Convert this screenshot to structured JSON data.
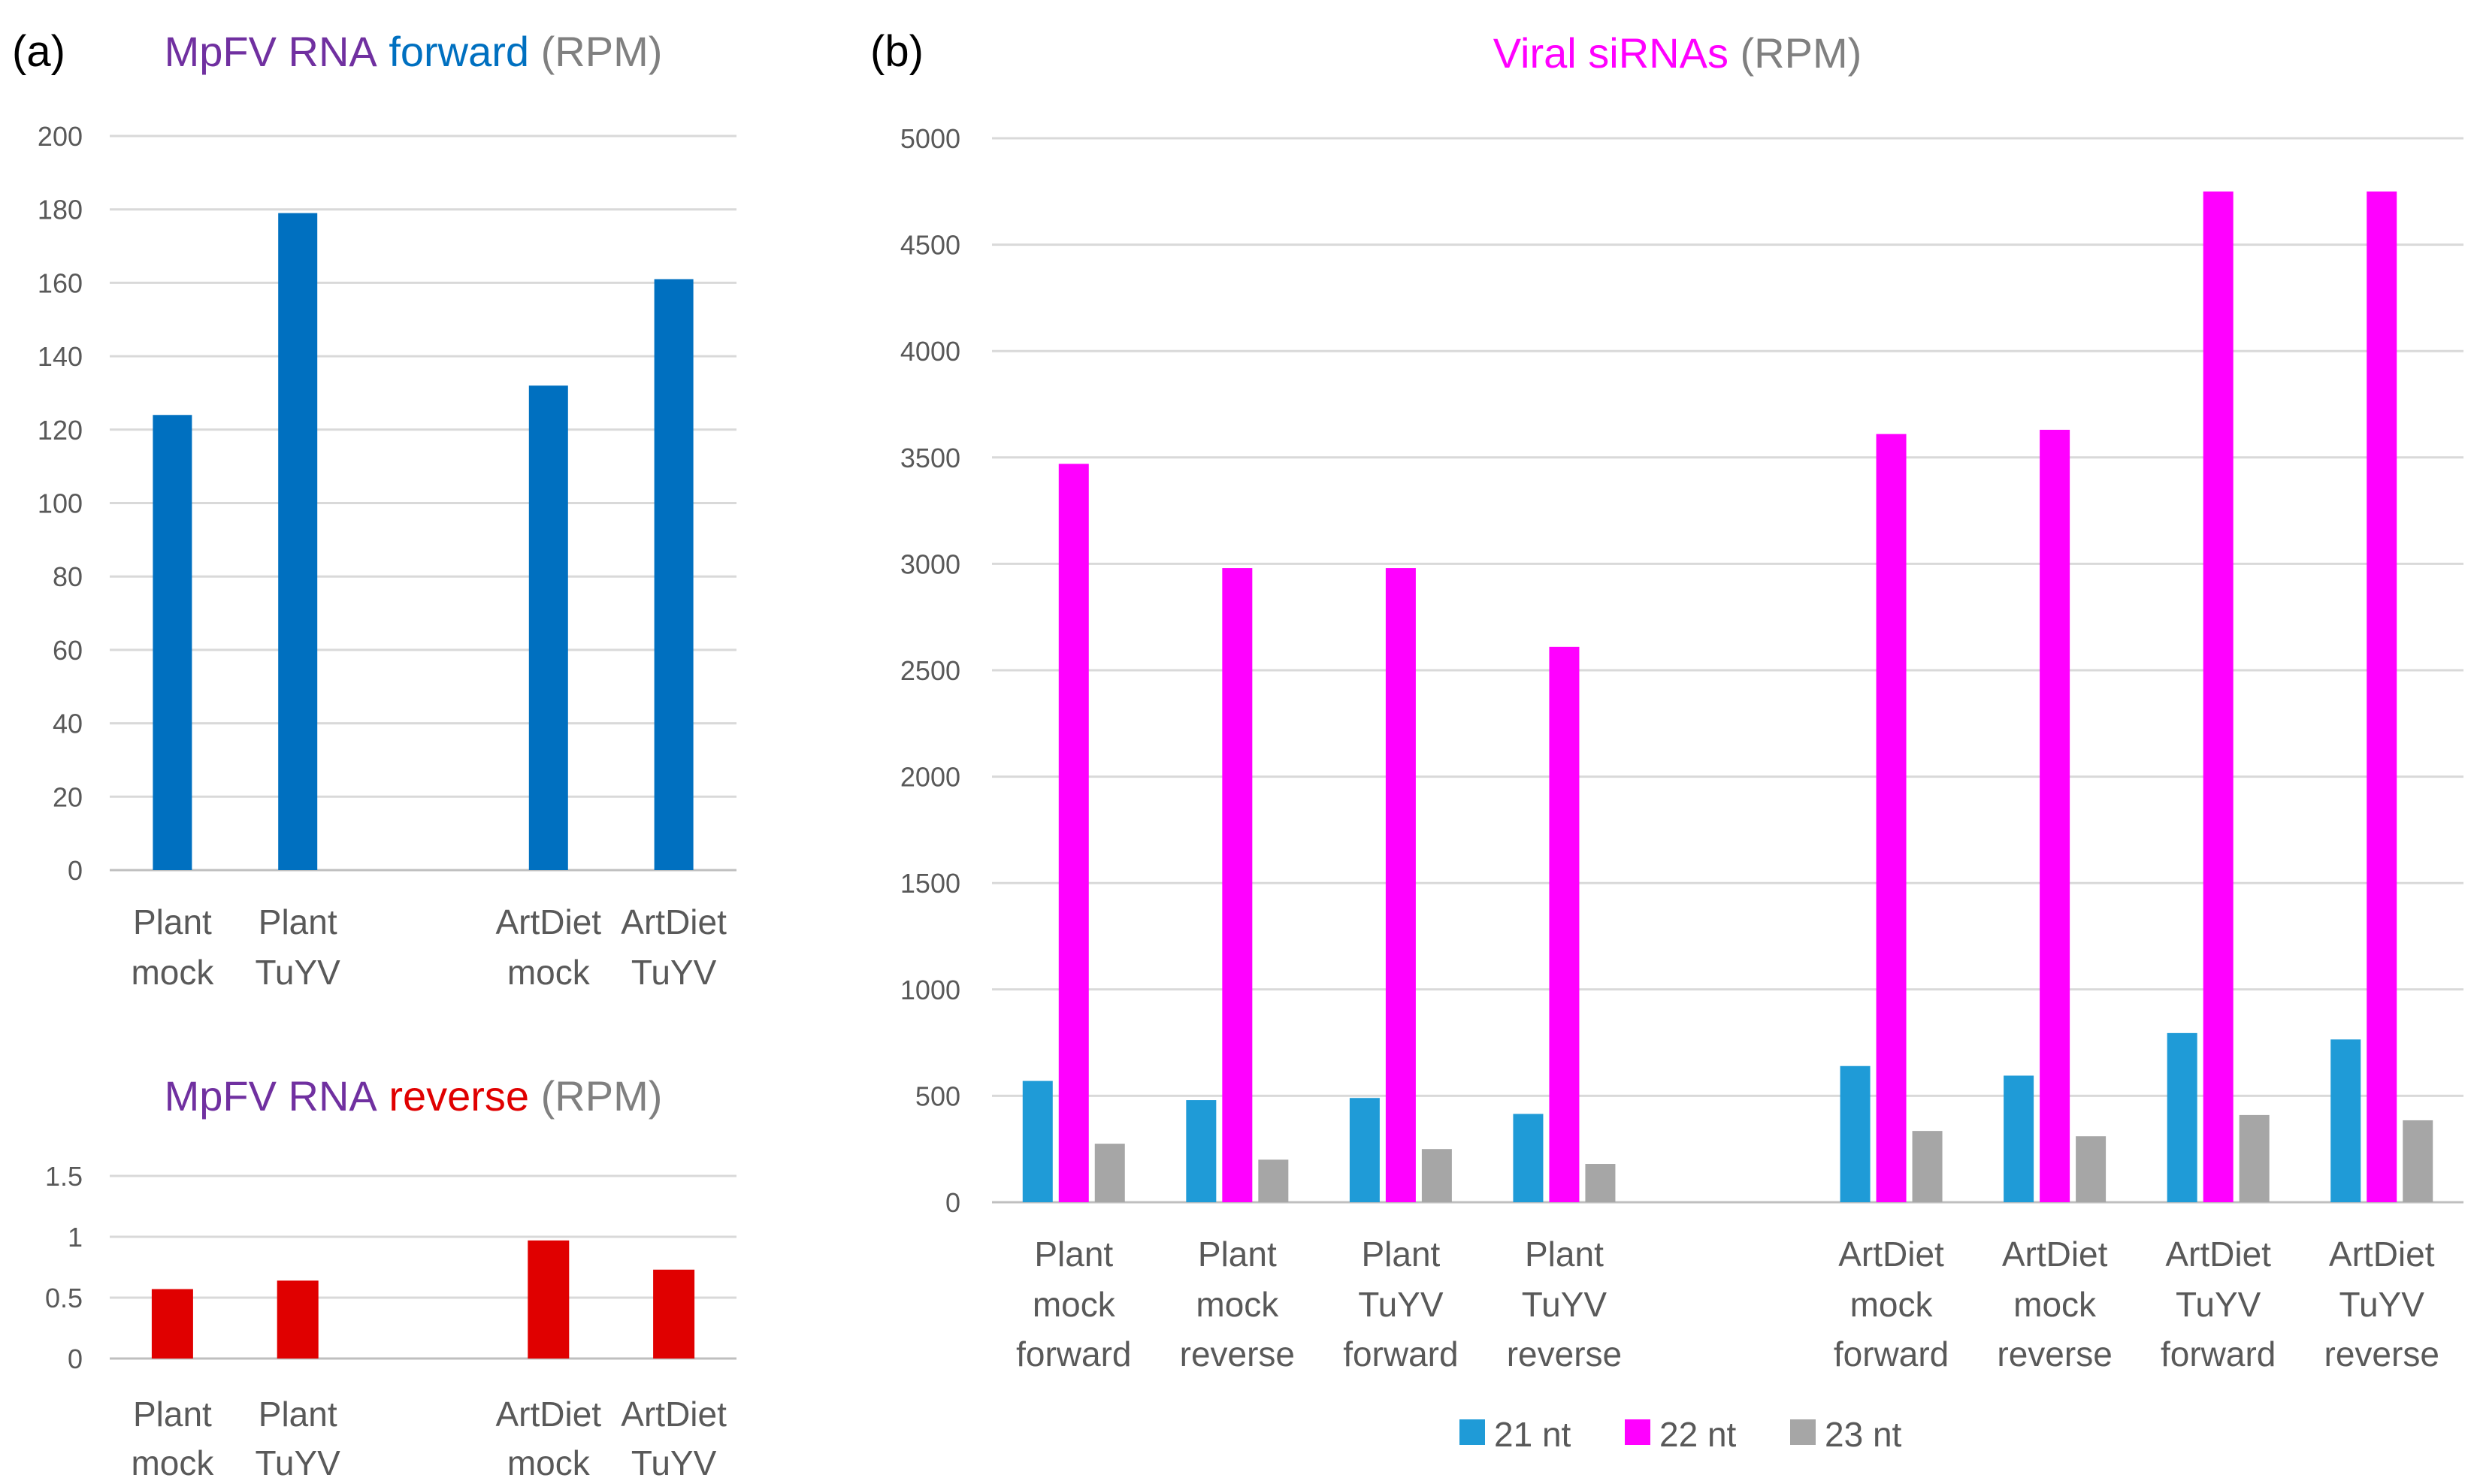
{
  "panels": {
    "a_label": "(a)",
    "b_label": "(b)"
  },
  "chart_data": [
    {
      "id": "forward",
      "type": "bar",
      "title_parts": [
        {
          "text": "MpFV RNA ",
          "color": "#7030A0"
        },
        {
          "text": "forward",
          "color": "#0070C0"
        },
        {
          "text": " (RPM)",
          "color": "#808080"
        }
      ],
      "categories": [
        [
          "Plant",
          "mock"
        ],
        [
          "Plant",
          "TuYV"
        ],
        [
          "",
          ""
        ],
        [
          "ArtDiet",
          "mock"
        ],
        [
          "ArtDiet",
          "TuYV"
        ]
      ],
      "series": [
        {
          "values": [
            124,
            179,
            null,
            132,
            161
          ],
          "color": "#0070C0"
        }
      ],
      "yticks": [
        "0",
        "20",
        "40",
        "60",
        "80",
        "100",
        "120",
        "140",
        "160",
        "180",
        "200"
      ],
      "ylim": [
        0,
        200
      ],
      "grid": true
    },
    {
      "id": "reverse",
      "type": "bar",
      "title_parts": [
        {
          "text": "MpFV RNA ",
          "color": "#7030A0"
        },
        {
          "text": "reverse",
          "color": "#E00000"
        },
        {
          "text": " (RPM)",
          "color": "#808080"
        }
      ],
      "categories": [
        [
          "Plant",
          "mock"
        ],
        [
          "Plant",
          "TuYV"
        ],
        [
          "",
          ""
        ],
        [
          "ArtDiet",
          "mock"
        ],
        [
          "ArtDiet",
          "TuYV"
        ]
      ],
      "series": [
        {
          "values": [
            0.57,
            0.64,
            null,
            0.97,
            0.73
          ],
          "color": "#E00000"
        }
      ],
      "yticks": [
        "0",
        "0.5",
        "1",
        "1.5"
      ],
      "ylim": [
        0,
        1.5
      ],
      "grid": true
    },
    {
      "id": "sirnas",
      "type": "bar",
      "title_parts": [
        {
          "text": "Viral siRNAs",
          "color": "#FF00FF"
        },
        {
          "text": " (RPM)",
          "color": "#808080"
        }
      ],
      "categories": [
        [
          "Plant",
          "mock",
          "forward"
        ],
        [
          "Plant",
          "mock",
          "reverse"
        ],
        [
          "Plant",
          "TuYV",
          "forward"
        ],
        [
          "Plant",
          "TuYV",
          "reverse"
        ],
        [
          "",
          "",
          ""
        ],
        [
          "ArtDiet",
          "mock",
          "forward"
        ],
        [
          "ArtDiet",
          "mock",
          "reverse"
        ],
        [
          "ArtDiet",
          "TuYV",
          "forward"
        ],
        [
          "ArtDiet",
          "TuYV",
          "reverse"
        ]
      ],
      "series": [
        {
          "name": "21 nt",
          "color": "#1F9BD7",
          "values": [
            570,
            480,
            490,
            415,
            null,
            640,
            595,
            795,
            765
          ]
        },
        {
          "name": "22 nt",
          "color": "#FF00FF",
          "values": [
            3470,
            2980,
            2980,
            2610,
            null,
            3610,
            3630,
            4750,
            4750
          ]
        },
        {
          "name": "23 nt",
          "color": "#A6A6A6",
          "values": [
            275,
            200,
            250,
            180,
            null,
            335,
            310,
            410,
            385
          ]
        }
      ],
      "yticks": [
        "0",
        "500",
        "1000",
        "1500",
        "2000",
        "2500",
        "3000",
        "3500",
        "4000",
        "4500",
        "5000"
      ],
      "ylim": [
        0,
        5000
      ],
      "grid": true,
      "legend": "bottom"
    }
  ]
}
